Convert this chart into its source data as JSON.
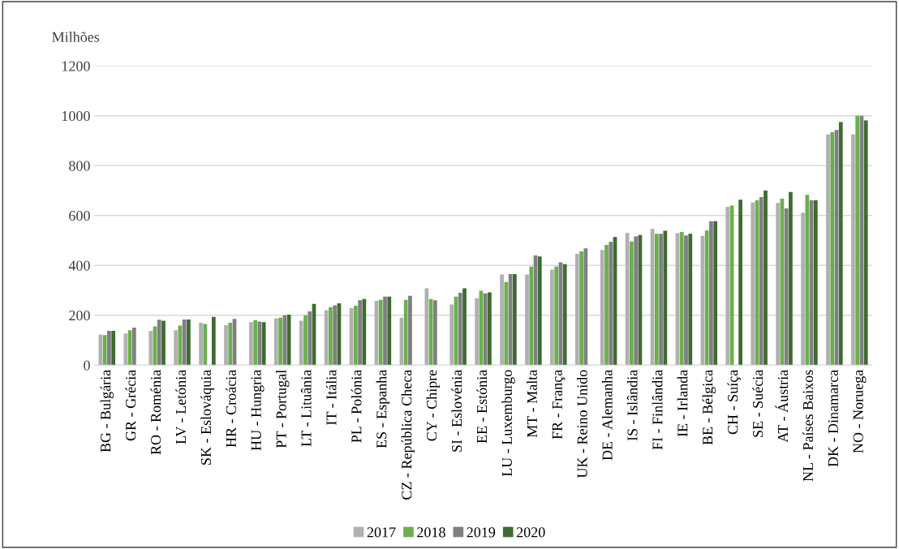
{
  "chart_data": {
    "type": "bar",
    "ylabel": "Milhões",
    "categories": [
      "BG - Bulgária",
      "GR - Grécia",
      "RO - Roménia",
      "LV - Letónia",
      "SK - Eslováquia",
      "HR - Croácia",
      "HU - Hungria",
      "PT - Portugal",
      "LT - Lituânia",
      "IT - Itália",
      "PL - Polónia",
      "ES - Espanha",
      "CZ - República Checa",
      "CY - Chipre",
      "SI - Eslovénia",
      "EE - Estónia",
      "LU - Luxemburgo",
      "MT - Malta",
      "FR - França",
      "UK - Reino Unido",
      "DE - Alemanha",
      "IS - Islândia",
      "FI - Finlândia",
      "IE - Irlanda",
      "BE - Bélgica",
      "CH - Suíça",
      "SE - Suécia",
      "AT - Áustria",
      "NL - Países Baixos",
      "DK - Dinamarca",
      "NO - Noruega"
    ],
    "series": [
      {
        "name": "2017",
        "color": "#b0b0b2",
        "values": [
          122,
          127,
          137,
          140,
          170,
          160,
          172,
          188,
          178,
          220,
          228,
          258,
          190,
          308,
          243,
          268,
          363,
          363,
          383,
          446,
          462,
          530,
          546,
          529,
          519,
          635,
          652,
          650,
          611,
          925,
          925
        ]
      },
      {
        "name": "2018",
        "color": "#6ab04c",
        "values": [
          120,
          140,
          155,
          158,
          165,
          170,
          180,
          190,
          200,
          232,
          238,
          262,
          262,
          265,
          275,
          298,
          333,
          395,
          395,
          456,
          482,
          495,
          527,
          534,
          540,
          640,
          661,
          667,
          683,
          934,
          1000
        ]
      },
      {
        "name": "2019",
        "color": "#7f7f82",
        "values": [
          137,
          150,
          182,
          183,
          null,
          185,
          175,
          200,
          215,
          240,
          260,
          275,
          278,
          260,
          290,
          288,
          365,
          440,
          412,
          468,
          494,
          516,
          527,
          520,
          577,
          null,
          674,
          628,
          661,
          943,
          1000
        ]
      },
      {
        "name": "2020",
        "color": "#3f6b30",
        "values": [
          137,
          null,
          178,
          183,
          193,
          null,
          172,
          202,
          245,
          248,
          265,
          275,
          null,
          null,
          308,
          292,
          365,
          436,
          405,
          null,
          514,
          522,
          539,
          527,
          577,
          663,
          700,
          694,
          661,
          975,
          981
        ]
      }
    ],
    "ylim": [
      0,
      1200
    ],
    "yticks": [
      0,
      200,
      400,
      600,
      800,
      1000,
      1200
    ],
    "grid": "y",
    "legend": "bottom"
  }
}
